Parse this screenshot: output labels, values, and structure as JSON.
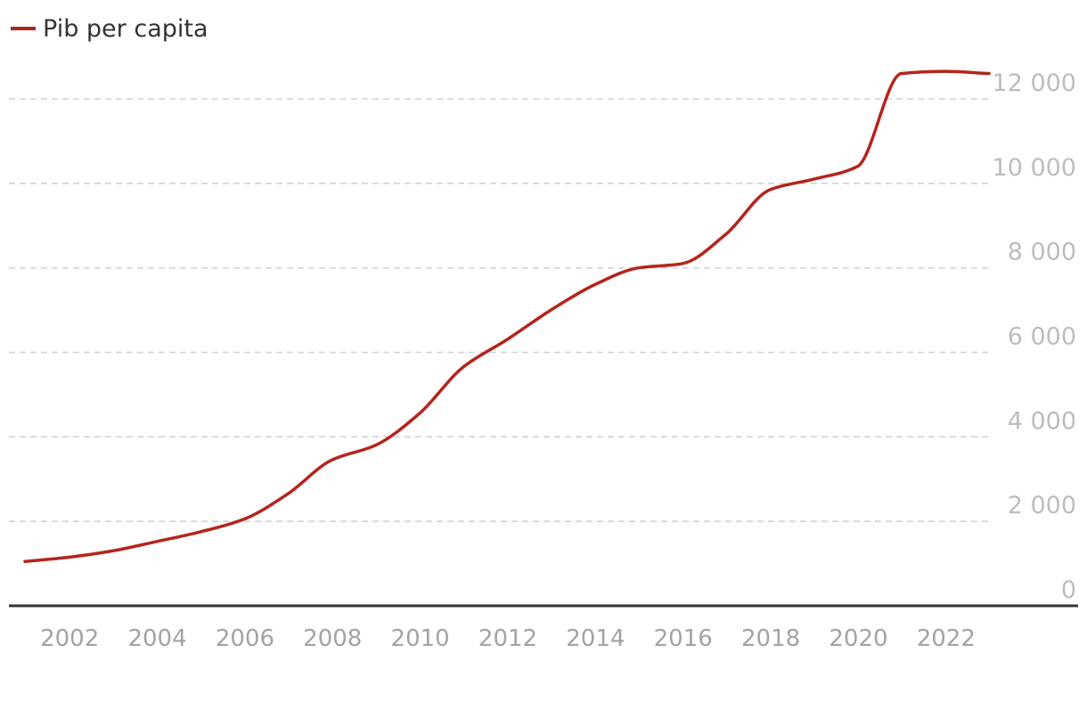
{
  "chart_data": {
    "type": "line",
    "title": "",
    "xlabel": "",
    "ylabel": "",
    "x": [
      2001,
      2002,
      2003,
      2004,
      2005,
      2006,
      2007,
      2008,
      2009,
      2010,
      2011,
      2012,
      2013,
      2014,
      2015,
      2016,
      2017,
      2018,
      2019,
      2020,
      2021,
      2022,
      2023
    ],
    "series": [
      {
        "name": "Pib per capita",
        "color": "#b5241c",
        "values": [
          1050,
          1150,
          1300,
          1520,
          1750,
          2050,
          2650,
          3450,
          3800,
          4550,
          5650,
          6300,
          7000,
          7600,
          8000,
          8100,
          8800,
          9850,
          10100,
          10400,
          12600,
          12650,
          12600
        ]
      }
    ],
    "xticks": [
      "2002",
      "2004",
      "2006",
      "2008",
      "2010",
      "2012",
      "2014",
      "2016",
      "2018",
      "2020",
      "2022"
    ],
    "xtick_values": [
      2002,
      2004,
      2006,
      2008,
      2010,
      2012,
      2014,
      2016,
      2018,
      2020,
      2022
    ],
    "yticks": [
      "0",
      "2 000",
      "4 000",
      "6 000",
      "8 000",
      "10 000",
      "12 000"
    ],
    "ytick_values": [
      0,
      2000,
      4000,
      6000,
      8000,
      10000,
      12000
    ],
    "ylim": [
      0,
      12000
    ],
    "xlim": [
      2001,
      2023
    ],
    "grid": true,
    "legend": "top-left"
  }
}
